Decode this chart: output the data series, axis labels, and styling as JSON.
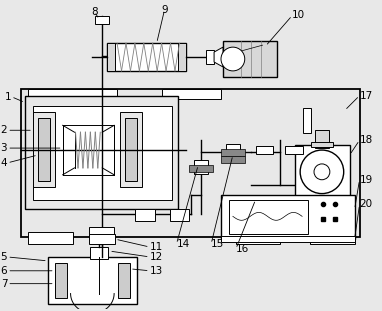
{
  "bg": "#e8e8e8",
  "lc": "#000000",
  "gray1": "#aaaaaa",
  "gray2": "#cccccc",
  "gray3": "#888888",
  "white": "#ffffff",
  "lightgray": "#d8d8d8",
  "figsize": [
    3.82,
    3.11
  ],
  "dpi": 100
}
